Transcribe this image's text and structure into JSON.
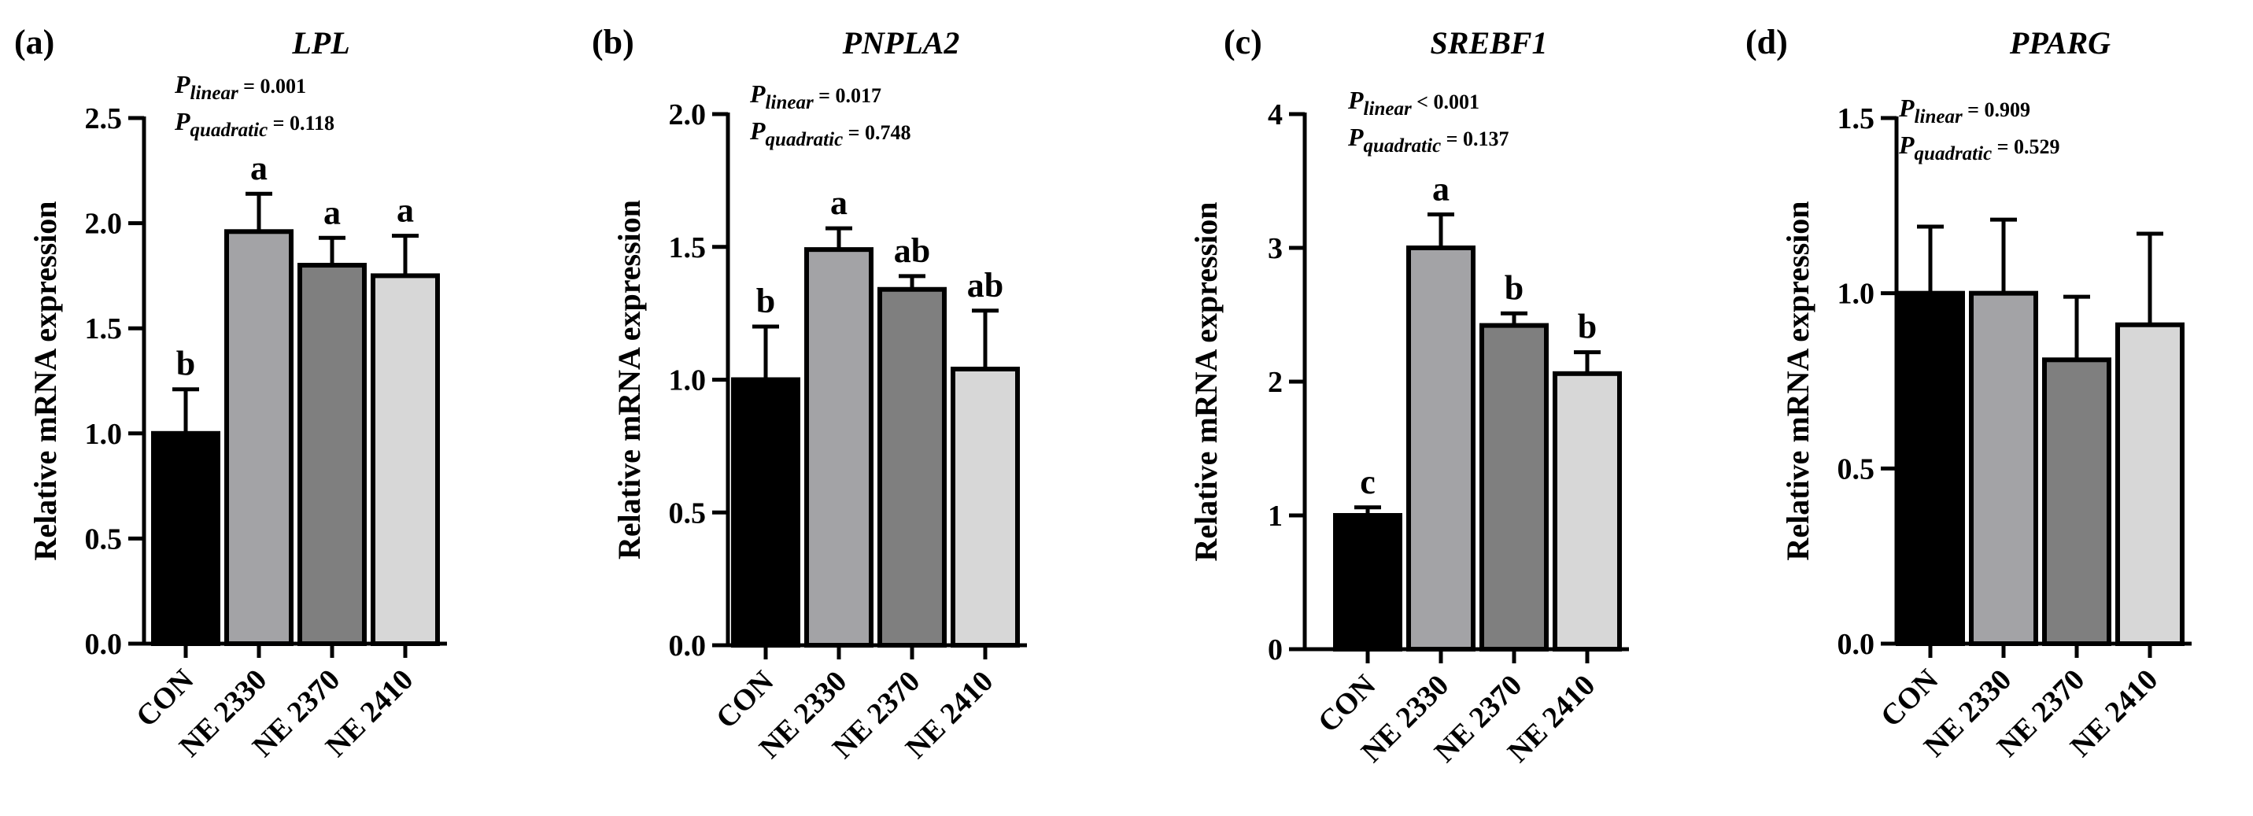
{
  "chart_data": [
    {
      "type": "bar",
      "panel": "(a)",
      "title": "LPL",
      "ylabel": "Relative mRNA expression",
      "categories": [
        "CON",
        "NE 2330",
        "NE 2370",
        "NE 2410"
      ],
      "values": [
        1.0,
        1.96,
        1.8,
        1.75
      ],
      "errors": [
        0.21,
        0.18,
        0.13,
        0.19
      ],
      "letters": [
        "b",
        "a",
        "a",
        "a"
      ],
      "ylim": [
        0,
        2.5
      ],
      "yticks": [
        "0.0",
        "0.5",
        "1.0",
        "1.5",
        "2.0",
        "2.5"
      ],
      "p_linear": "= 0.001",
      "p_quadratic": "= 0.118"
    },
    {
      "type": "bar",
      "panel": "(b)",
      "title": "PNPLA2",
      "ylabel": "Relative mRNA expression",
      "categories": [
        "CON",
        "NE 2330",
        "NE 2370",
        "NE 2410"
      ],
      "values": [
        1.0,
        1.49,
        1.34,
        1.04
      ],
      "errors": [
        0.2,
        0.08,
        0.05,
        0.22
      ],
      "letters": [
        "b",
        "a",
        "ab",
        "ab"
      ],
      "ylim": [
        0,
        2.0
      ],
      "yticks": [
        "0.0",
        "0.5",
        "1.0",
        "1.5",
        "2.0"
      ],
      "p_linear": "= 0.017",
      "p_quadratic": "= 0.748"
    },
    {
      "type": "bar",
      "panel": "(c)",
      "title": "SREBF1",
      "ylabel": "Relative mRNA expression",
      "categories": [
        "CON",
        "NE 2330",
        "NE 2370",
        "NE 2410"
      ],
      "values": [
        1.0,
        3.0,
        2.42,
        2.06
      ],
      "errors": [
        0.06,
        0.25,
        0.09,
        0.16
      ],
      "letters": [
        "c",
        "a",
        "b",
        "b"
      ],
      "ylim": [
        0,
        4
      ],
      "yticks": [
        "0",
        "1",
        "2",
        "3",
        "4"
      ],
      "p_linear": "< 0.001",
      "p_quadratic": "= 0.137"
    },
    {
      "type": "bar",
      "panel": "(d)",
      "title": "PPARG",
      "ylabel": "Relative mRNA expression",
      "categories": [
        "CON",
        "NE 2330",
        "NE 2370",
        "NE 2410"
      ],
      "values": [
        1.0,
        1.0,
        0.81,
        0.91
      ],
      "errors": [
        0.19,
        0.21,
        0.18,
        0.26
      ],
      "letters": [
        "",
        "",
        "",
        ""
      ],
      "ylim": [
        0,
        1.5
      ],
      "yticks": [
        "0.0",
        "0.5",
        "1.0",
        "1.5"
      ],
      "p_linear": "= 0.909",
      "p_quadratic": "= 0.529"
    }
  ],
  "p_labels": {
    "symbol": "P",
    "linear": "linear",
    "quadratic": "quadratic"
  },
  "colors": {
    "bars": [
      "#000000",
      "#a3a3a6",
      "#7f7f7f",
      "#d7d7d7"
    ],
    "axis": "#000000"
  }
}
